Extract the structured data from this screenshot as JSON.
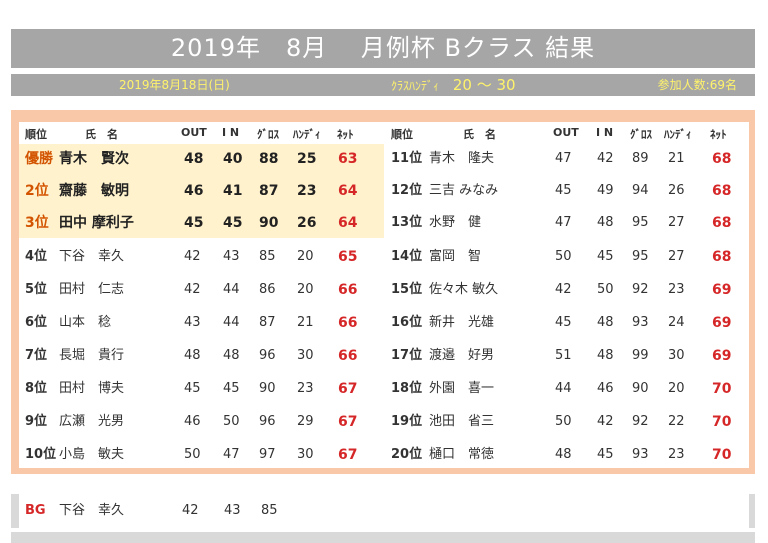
{
  "title": "2019年　8月　 月例杯 Bクラス 結果",
  "info": {
    "date": "2019年8月18日(日)",
    "handi_label": "ｸﾗｽﾊﾝﾃﾞｨ",
    "handi_range": "20 ～ 30",
    "participants": "参加人数:69名"
  },
  "headers": {
    "rank": "順位",
    "name": "氏　名",
    "out": "OUT",
    "in": "I N",
    "gross": "ｸﾞﾛｽ",
    "handi": "ﾊﾝﾃﾞｨ",
    "net": "ﾈｯﾄ"
  },
  "left": [
    {
      "rank": "優勝",
      "name": "青木　賢次",
      "out": "48",
      "in": "40",
      "gross": "88",
      "handi": "25",
      "net": "63"
    },
    {
      "rank": "2位",
      "name": "齋藤　敏明",
      "out": "46",
      "in": "41",
      "gross": "87",
      "handi": "23",
      "net": "64"
    },
    {
      "rank": "3位",
      "name": "田中 摩利子",
      "out": "45",
      "in": "45",
      "gross": "90",
      "handi": "26",
      "net": "64"
    },
    {
      "rank": "4位",
      "name": "下谷　幸久",
      "out": "42",
      "in": "43",
      "gross": "85",
      "handi": "20",
      "net": "65"
    },
    {
      "rank": "5位",
      "name": "田村　仁志",
      "out": "42",
      "in": "44",
      "gross": "86",
      "handi": "20",
      "net": "66"
    },
    {
      "rank": "6位",
      "name": "山本　稔",
      "out": "43",
      "in": "44",
      "gross": "87",
      "handi": "21",
      "net": "66"
    },
    {
      "rank": "7位",
      "name": "長堀　貴行",
      "out": "48",
      "in": "48",
      "gross": "96",
      "handi": "30",
      "net": "66"
    },
    {
      "rank": "8位",
      "name": "田村　博夫",
      "out": "45",
      "in": "45",
      "gross": "90",
      "handi": "23",
      "net": "67"
    },
    {
      "rank": "9位",
      "name": "広瀬　光男",
      "out": "46",
      "in": "50",
      "gross": "96",
      "handi": "29",
      "net": "67"
    },
    {
      "rank": "10位",
      "name": "小島　敏夫",
      "out": "50",
      "in": "47",
      "gross": "97",
      "handi": "30",
      "net": "67"
    }
  ],
  "right": [
    {
      "rank": "11位",
      "name": "青木　隆夫",
      "out": "47",
      "in": "42",
      "gross": "89",
      "handi": "21",
      "net": "68"
    },
    {
      "rank": "12位",
      "name": "三吉 みなみ",
      "out": "45",
      "in": "49",
      "gross": "94",
      "handi": "26",
      "net": "68"
    },
    {
      "rank": "13位",
      "name": "水野　健",
      "out": "47",
      "in": "48",
      "gross": "95",
      "handi": "27",
      "net": "68"
    },
    {
      "rank": "14位",
      "name": "富岡　智",
      "out": "50",
      "in": "45",
      "gross": "95",
      "handi": "27",
      "net": "68"
    },
    {
      "rank": "15位",
      "name": "佐々木 敏久",
      "out": "42",
      "in": "50",
      "gross": "92",
      "handi": "23",
      "net": "69"
    },
    {
      "rank": "16位",
      "name": "新井　光雄",
      "out": "45",
      "in": "48",
      "gross": "93",
      "handi": "24",
      "net": "69"
    },
    {
      "rank": "17位",
      "name": "渡邉　好男",
      "out": "51",
      "in": "48",
      "gross": "99",
      "handi": "30",
      "net": "69"
    },
    {
      "rank": "18位",
      "name": "外園　喜一",
      "out": "44",
      "in": "46",
      "gross": "90",
      "handi": "20",
      "net": "70"
    },
    {
      "rank": "19位",
      "name": "池田　省三",
      "out": "50",
      "in": "42",
      "gross": "92",
      "handi": "22",
      "net": "70"
    },
    {
      "rank": "20位",
      "name": "樋口　常徳",
      "out": "48",
      "in": "45",
      "gross": "93",
      "handi": "23",
      "net": "70"
    }
  ],
  "best_gross": {
    "label": "BG",
    "name": "下谷　幸久",
    "out": "42",
    "in": "43",
    "gross": "85"
  }
}
